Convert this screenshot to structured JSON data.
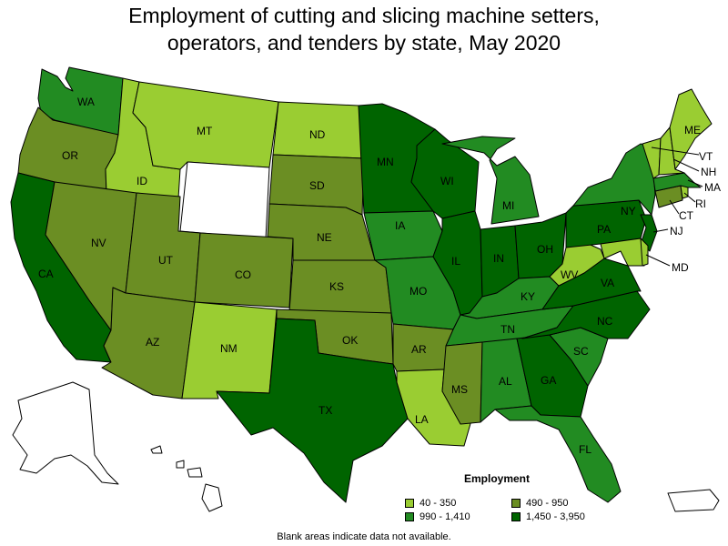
{
  "title_line1": "Employment of cutting and slicing machine setters,",
  "title_line2": "operators, and tenders by state, May 2020",
  "legend": {
    "title": "Employment",
    "items": [
      {
        "label": "40 - 350",
        "color": "#9acd32"
      },
      {
        "label": "490 - 950",
        "color": "#6b8e23"
      },
      {
        "label": "990 - 1,410",
        "color": "#228b22"
      },
      {
        "label": "1,450 - 3,950",
        "color": "#006400"
      }
    ]
  },
  "footnote": "Blank areas indicate data not available.",
  "state_labels": {
    "WA": "WA",
    "OR": "OR",
    "CA": "CA",
    "ID": "ID",
    "NV": "NV",
    "MT": "MT",
    "UT": "UT",
    "AZ": "AZ",
    "ND": "ND",
    "SD": "SD",
    "NE": "NE",
    "CO": "CO",
    "KS": "KS",
    "NM": "NM",
    "OK": "OK",
    "TX": "TX",
    "MN": "MN",
    "IA": "IA",
    "MO": "MO",
    "AR": "AR",
    "LA": "LA",
    "WI": "WI",
    "IL": "IL",
    "MS": "MS",
    "MI": "MI",
    "IN": "IN",
    "KY": "KY",
    "TN": "TN",
    "AL": "AL",
    "OH": "OH",
    "GA": "GA",
    "FL": "FL",
    "SC": "SC",
    "NC": "NC",
    "VA": "VA",
    "WV": "WV",
    "PA": "PA",
    "NY": "NY",
    "ME": "ME",
    "VT": "VT",
    "NH": "NH",
    "MA": "MA",
    "RI": "RI",
    "CT": "CT",
    "NJ": "NJ",
    "MD": "MD"
  },
  "state_bins": {
    "WA": 2,
    "OR": 1,
    "CA": 3,
    "ID": 0,
    "NV": 1,
    "MT": 0,
    "WY": null,
    "UT": 1,
    "AZ": 1,
    "CO": 1,
    "NM": 0,
    "ND": 0,
    "SD": 1,
    "NE": 1,
    "KS": 1,
    "OK": 1,
    "TX": 3,
    "MN": 3,
    "IA": 2,
    "MO": 2,
    "AR": 1,
    "LA": 0,
    "WI": 3,
    "IL": 3,
    "MS": 1,
    "MI": 2,
    "IN": 3,
    "KY": 2,
    "TN": 2,
    "AL": 2,
    "OH": 3,
    "GA": 3,
    "FL": 2,
    "SC": 2,
    "NC": 3,
    "VA": 3,
    "WV": 0,
    "PA": 3,
    "NY": 2,
    "ME": 0,
    "VT": 0,
    "NH": 0,
    "MA": 2,
    "RI": 0,
    "CT": 1,
    "NJ": 3,
    "MD": 0,
    "DE": 0,
    "AK": null,
    "HI": null,
    "PR": null
  }
}
